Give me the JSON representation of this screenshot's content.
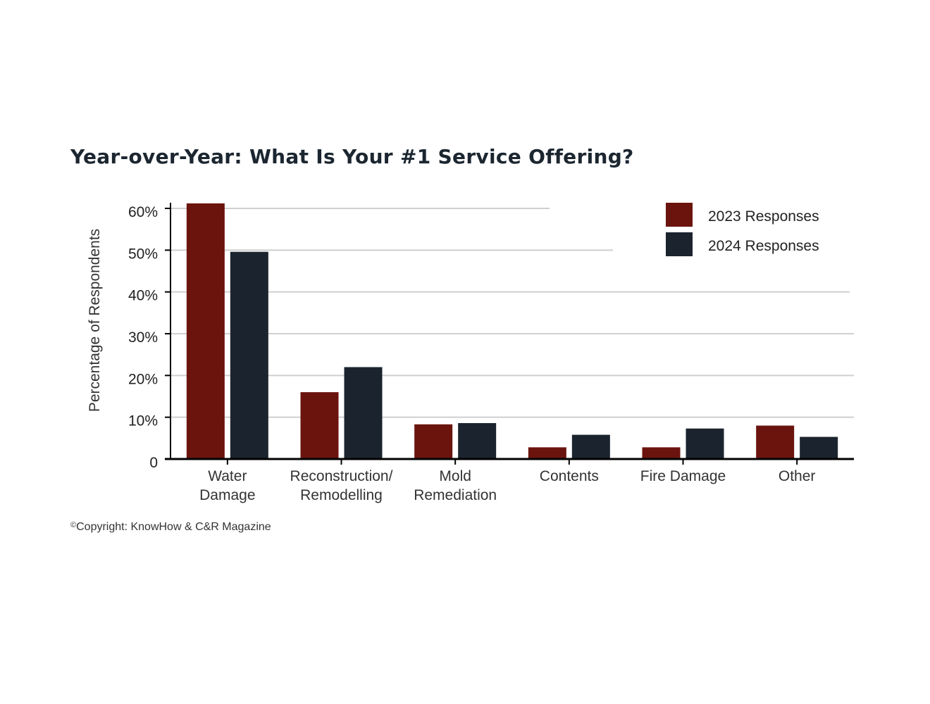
{
  "chart_data": {
    "type": "bar",
    "title": "Year-over-Year: What Is Your #1 Service Offering?",
    "ylabel": "Percentage of Respondents",
    "xlabel": "",
    "ylim": [
      0,
      60
    ],
    "yticks": [
      "0",
      "10%",
      "20%",
      "30%",
      "40%",
      "50%",
      "60%"
    ],
    "categories": [
      [
        "Water",
        "Damage"
      ],
      [
        "Reconstruction/",
        "Remodelling"
      ],
      [
        "Mold",
        "Remediation"
      ],
      [
        "Contents"
      ],
      [
        "Fire Damage"
      ],
      [
        "Other"
      ]
    ],
    "series": [
      {
        "name": "2023 Responses",
        "color": "#6b140e",
        "values": [
          61.2,
          16,
          8.3,
          2.8,
          2.8,
          8
        ]
      },
      {
        "name": "2024 Responses",
        "color": "#1b242e",
        "values": [
          49.6,
          22,
          8.6,
          5.8,
          7.3,
          5.3
        ]
      }
    ],
    "grid": true,
    "legend_position": "top-right"
  },
  "footer": {
    "symbol": "©",
    "copyright": "Copyright: KnowHow & C&R Magazine"
  }
}
